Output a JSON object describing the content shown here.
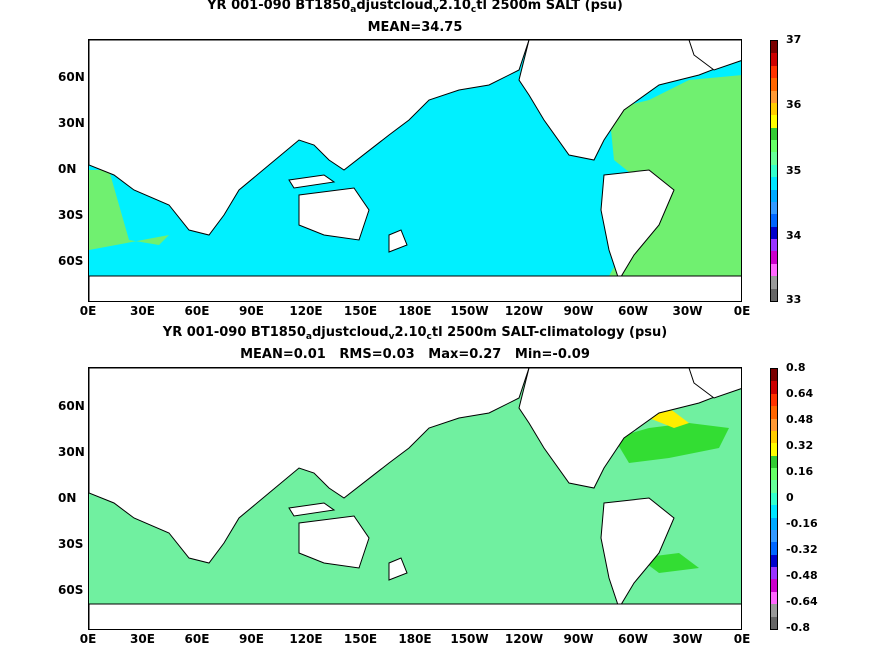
{
  "panel1": {
    "title_parts": [
      "YR 001-090 BT1850",
      "a",
      "djustcloud",
      "v",
      "2.10",
      "c",
      "tl 2500m SALT (psu)"
    ],
    "subtitle": "MEAN=34.75",
    "colorbar": {
      "labels": [
        "37",
        "36",
        "35",
        "34",
        "33"
      ],
      "colors": [
        "#7a0000",
        "#cc0000",
        "#ff3300",
        "#ff6600",
        "#ff9933",
        "#ffcc00",
        "#ffff00",
        "#33cc33",
        "#66ff66",
        "#66ff99",
        "#33ffcc",
        "#00e5ff",
        "#00aaff",
        "#3399ff",
        "#0066ff",
        "#0000cc",
        "#9933ff",
        "#cc00cc",
        "#ff66ff",
        "#999999",
        "#666666"
      ]
    },
    "ocean_color": "#00f0ff",
    "atlantic_color": "#70f070"
  },
  "panel2": {
    "title_parts": [
      "YR 001-090 BT1850",
      "a",
      "djustcloud",
      "v",
      "2.10",
      "c",
      "tl 2500m SALT-climatology (psu)"
    ],
    "subtitle": "MEAN=0.01   RMS=0.03   Max=0.27   Min=-0.09",
    "colorbar": {
      "labels": [
        "0.8",
        "0.64",
        "0.48",
        "0.32",
        "0.16",
        "0",
        "-0.16",
        "-0.32",
        "-0.48",
        "-0.64",
        "-0.8"
      ],
      "colors": [
        "#7a0000",
        "#cc0000",
        "#ff3300",
        "#ff6600",
        "#ff9933",
        "#ffcc00",
        "#ffff00",
        "#33cc33",
        "#66ff66",
        "#66ff99",
        "#33ffcc",
        "#00e5ff",
        "#00aaff",
        "#3399ff",
        "#0066ff",
        "#0000cc",
        "#9933ff",
        "#cc00cc",
        "#ff66ff",
        "#999999",
        "#666666"
      ]
    },
    "ocean_color": "#70f0a0",
    "north_atlantic_color": "#33dd33",
    "hotspot_color": "#ffee00"
  },
  "y_ticks": [
    "60N",
    "30N",
    "0N",
    "30S",
    "60S"
  ],
  "x_ticks": [
    "0E",
    "30E",
    "60E",
    "90E",
    "120E",
    "150E",
    "180E",
    "150W",
    "120W",
    "90W",
    "60W",
    "30W",
    "0E"
  ]
}
